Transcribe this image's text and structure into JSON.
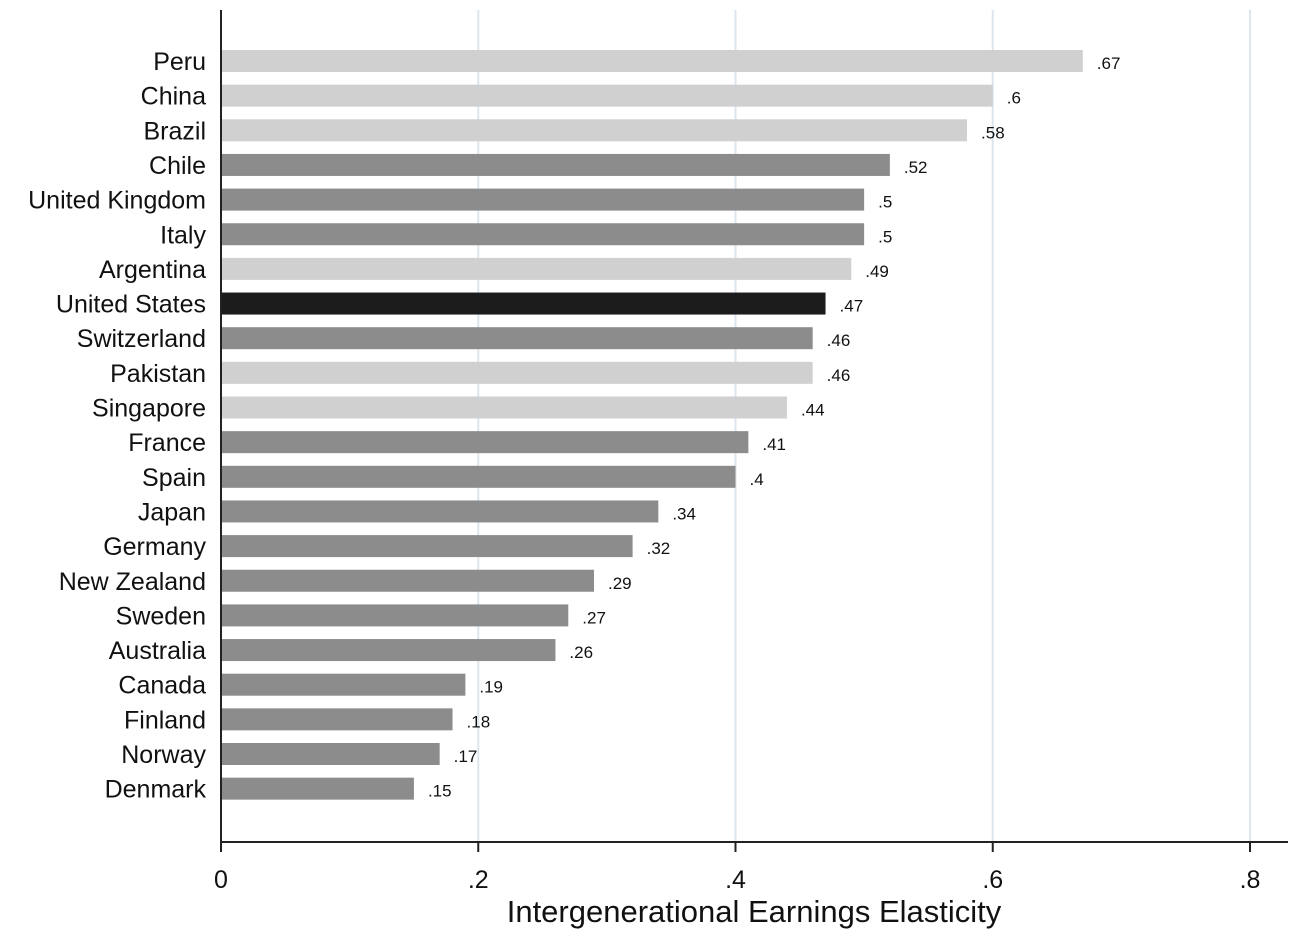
{
  "chart_data": {
    "type": "bar",
    "orientation": "horizontal",
    "title": "",
    "xlabel": "Intergenerational Earnings Elasticity",
    "ylabel": "",
    "xlim": [
      0,
      0.8
    ],
    "grid": true,
    "legend": "none",
    "x_ticks": [
      0,
      0.2,
      0.4,
      0.6,
      0.8
    ],
    "x_tick_labels": [
      "0",
      ".2",
      ".4",
      ".6",
      ".8"
    ],
    "categories": [
      "Peru",
      "China",
      "Brazil",
      "Chile",
      "United Kingdom",
      "Italy",
      "Argentina",
      "United States",
      "Switzerland",
      "Pakistan",
      "Singapore",
      "France",
      "Spain",
      "Japan",
      "Germany",
      "New Zealand",
      "Sweden",
      "Australia",
      "Canada",
      "Finland",
      "Norway",
      "Denmark"
    ],
    "values": [
      0.67,
      0.6,
      0.58,
      0.52,
      0.5,
      0.5,
      0.49,
      0.47,
      0.46,
      0.46,
      0.44,
      0.41,
      0.4,
      0.34,
      0.32,
      0.29,
      0.27,
      0.26,
      0.19,
      0.18,
      0.17,
      0.15
    ],
    "value_labels": [
      ".67",
      ".6",
      ".58",
      ".52",
      ".5",
      ".5",
      ".49",
      ".47",
      ".46",
      ".46",
      ".44",
      ".41",
      ".4",
      ".34",
      ".32",
      ".29",
      ".27",
      ".26",
      ".19",
      ".18",
      ".17",
      ".15"
    ],
    "bar_colors": [
      "#d0d0d0",
      "#d0d0d0",
      "#d0d0d0",
      "#8c8c8c",
      "#8c8c8c",
      "#8c8c8c",
      "#d0d0d0",
      "#1c1c1c",
      "#8c8c8c",
      "#d0d0d0",
      "#d0d0d0",
      "#8c8c8c",
      "#8c8c8c",
      "#8c8c8c",
      "#8c8c8c",
      "#8c8c8c",
      "#8c8c8c",
      "#8c8c8c",
      "#8c8c8c",
      "#8c8c8c",
      "#8c8c8c",
      "#8c8c8c"
    ],
    "grid_color": "#dde6ee",
    "axis_color": "#222222"
  }
}
